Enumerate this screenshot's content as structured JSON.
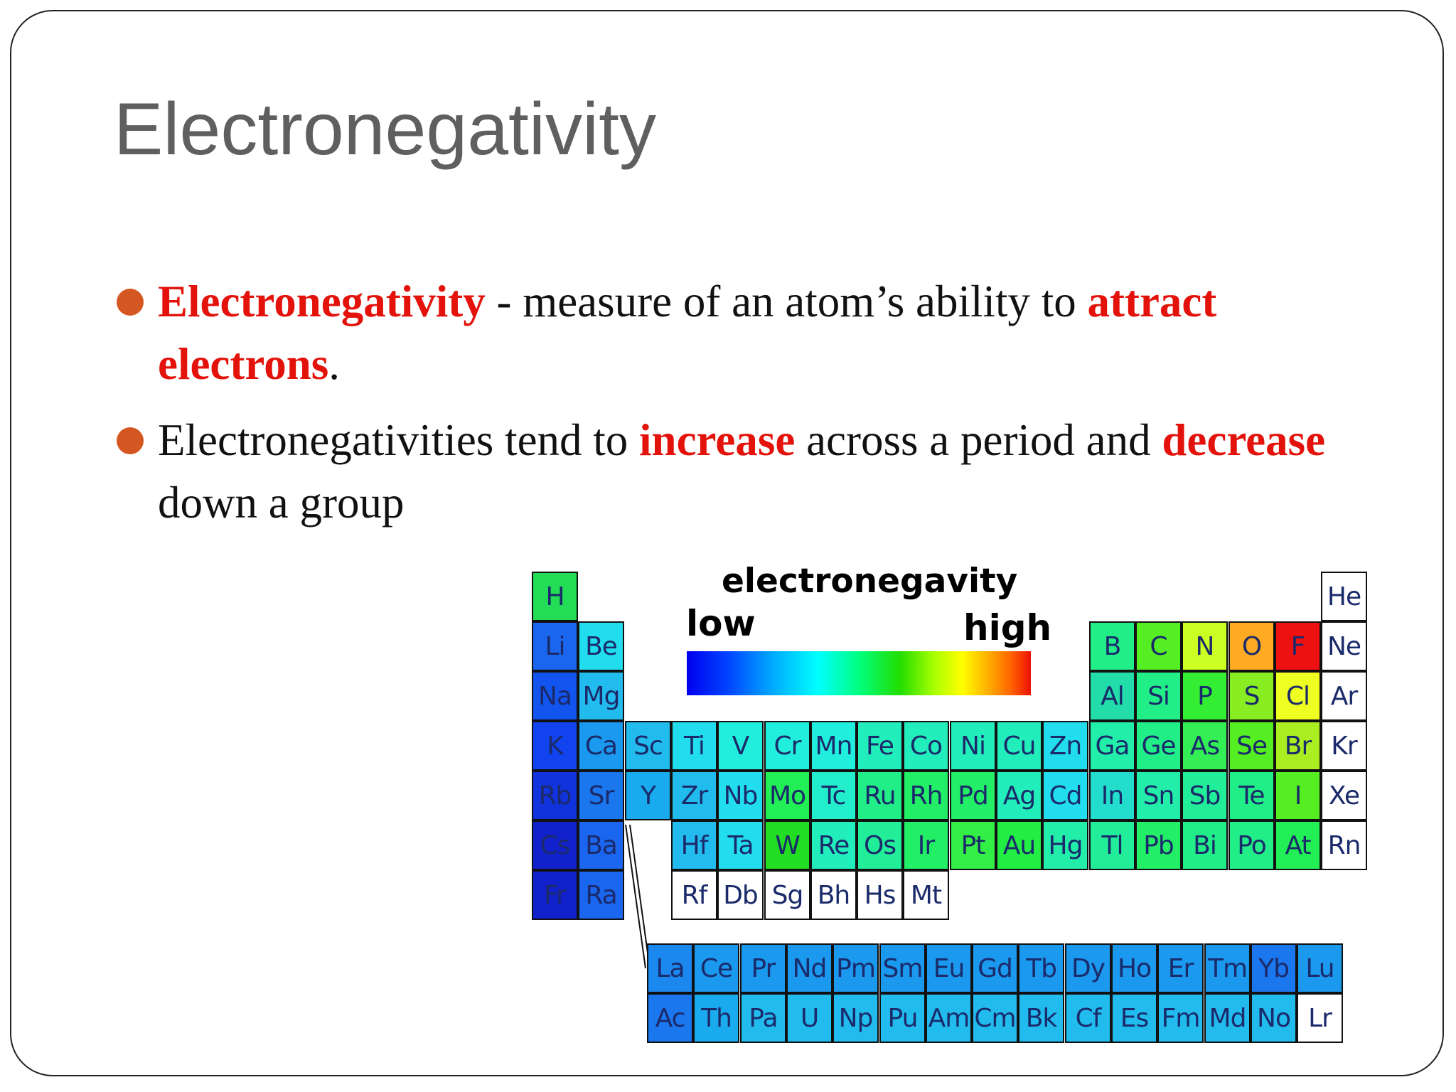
{
  "slide": {
    "title": "Electronegativity",
    "bullets": [
      {
        "term": "Electronegativity",
        "text1": "  - measure of an atom’s ability to ",
        "emph1": "attract electrons",
        "text2": "."
      },
      {
        "text1": "Electronegativities tend to ",
        "emph1": "increase",
        "text2": " across a period and ",
        "emph2": "decrease",
        "text3": " down a group"
      }
    ],
    "colors": {
      "accent_red": "#e3120b",
      "bullet_dot": "#d45722",
      "title_gray": "#5f5f5f"
    }
  },
  "periodic_table": {
    "legend_title": "electronegavity",
    "legend_low": "low",
    "legend_high": "high",
    "main": [
      {
        "s": "H",
        "r": 0,
        "c": 0,
        "color": "#22dd55"
      },
      {
        "s": "He",
        "r": 0,
        "c": 17,
        "color": "#ffffff"
      },
      {
        "s": "Li",
        "r": 1,
        "c": 0,
        "color": "#1a66ee"
      },
      {
        "s": "Be",
        "r": 1,
        "c": 1,
        "color": "#22ddee"
      },
      {
        "s": "B",
        "r": 1,
        "c": 12,
        "color": "#22ee88"
      },
      {
        "s": "C",
        "r": 1,
        "c": 13,
        "color": "#55ee22"
      },
      {
        "s": "N",
        "r": 1,
        "c": 14,
        "color": "#ccff22"
      },
      {
        "s": "O",
        "r": 1,
        "c": 15,
        "color": "#ffaa22"
      },
      {
        "s": "F",
        "r": 1,
        "c": 16,
        "color": "#ee1111"
      },
      {
        "s": "Ne",
        "r": 1,
        "c": 17,
        "color": "#ffffff"
      },
      {
        "s": "Na",
        "r": 2,
        "c": 0,
        "color": "#1155ee"
      },
      {
        "s": "Mg",
        "r": 2,
        "c": 1,
        "color": "#22bbee"
      },
      {
        "s": "Al",
        "r": 2,
        "c": 12,
        "color": "#22ddaa"
      },
      {
        "s": "Si",
        "r": 2,
        "c": 13,
        "color": "#22ee88"
      },
      {
        "s": "P",
        "r": 2,
        "c": 14,
        "color": "#33ee33"
      },
      {
        "s": "S",
        "r": 2,
        "c": 15,
        "color": "#88ee22"
      },
      {
        "s": "Cl",
        "r": 2,
        "c": 16,
        "color": "#eeff22"
      },
      {
        "s": "Ar",
        "r": 2,
        "c": 17,
        "color": "#ffffff"
      },
      {
        "s": "K",
        "r": 3,
        "c": 0,
        "color": "#1144ee"
      },
      {
        "s": "Ca",
        "r": 3,
        "c": 1,
        "color": "#1a99ee"
      },
      {
        "s": "Sc",
        "r": 3,
        "c": 2,
        "color": "#22bbee"
      },
      {
        "s": "Ti",
        "r": 3,
        "c": 3,
        "color": "#22ddee"
      },
      {
        "s": "V",
        "r": 3,
        "c": 4,
        "color": "#22eedd"
      },
      {
        "s": "Cr",
        "r": 3,
        "c": 5,
        "color": "#22eedd"
      },
      {
        "s": "Mn",
        "r": 3,
        "c": 6,
        "color": "#22eedd"
      },
      {
        "s": "Fe",
        "r": 3,
        "c": 7,
        "color": "#22eebb"
      },
      {
        "s": "Co",
        "r": 3,
        "c": 8,
        "color": "#22eebb"
      },
      {
        "s": "Ni",
        "r": 3,
        "c": 9,
        "color": "#22eebb"
      },
      {
        "s": "Cu",
        "r": 3,
        "c": 10,
        "color": "#22eebb"
      },
      {
        "s": "Zn",
        "r": 3,
        "c": 11,
        "color": "#22ddee"
      },
      {
        "s": "Ga",
        "r": 3,
        "c": 12,
        "color": "#22eeaa"
      },
      {
        "s": "Ge",
        "r": 3,
        "c": 13,
        "color": "#22ee88"
      },
      {
        "s": "As",
        "r": 3,
        "c": 14,
        "color": "#33ee55"
      },
      {
        "s": "Se",
        "r": 3,
        "c": 15,
        "color": "#55ee22"
      },
      {
        "s": "Br",
        "r": 3,
        "c": 16,
        "color": "#aaee22"
      },
      {
        "s": "Kr",
        "r": 3,
        "c": 17,
        "color": "#ffffff"
      },
      {
        "s": "Rb",
        "r": 4,
        "c": 0,
        "color": "#1133dd"
      },
      {
        "s": "Sr",
        "r": 4,
        "c": 1,
        "color": "#1a77ee"
      },
      {
        "s": "Y",
        "r": 4,
        "c": 2,
        "color": "#1aaaee"
      },
      {
        "s": "Zr",
        "r": 4,
        "c": 3,
        "color": "#22bbee"
      },
      {
        "s": "Nb",
        "r": 4,
        "c": 4,
        "color": "#22ddee"
      },
      {
        "s": "Mo",
        "r": 4,
        "c": 5,
        "color": "#22ee55"
      },
      {
        "s": "Tc",
        "r": 4,
        "c": 6,
        "color": "#22eecc"
      },
      {
        "s": "Ru",
        "r": 4,
        "c": 7,
        "color": "#22ee88"
      },
      {
        "s": "Rh",
        "r": 4,
        "c": 8,
        "color": "#22ee66"
      },
      {
        "s": "Pd",
        "r": 4,
        "c": 9,
        "color": "#22ee66"
      },
      {
        "s": "Ag",
        "r": 4,
        "c": 10,
        "color": "#22eebb"
      },
      {
        "s": "Cd",
        "r": 4,
        "c": 11,
        "color": "#22ddee"
      },
      {
        "s": "In",
        "r": 4,
        "c": 12,
        "color": "#22ddcc"
      },
      {
        "s": "Sn",
        "r": 4,
        "c": 13,
        "color": "#22eeaa"
      },
      {
        "s": "Sb",
        "r": 4,
        "c": 14,
        "color": "#22ee99"
      },
      {
        "s": "Te",
        "r": 4,
        "c": 15,
        "color": "#22ee88"
      },
      {
        "s": "I",
        "r": 4,
        "c": 16,
        "color": "#55ee22"
      },
      {
        "s": "Xe",
        "r": 4,
        "c": 17,
        "color": "#ffffff"
      },
      {
        "s": "Cs",
        "r": 5,
        "c": 0,
        "color": "#1122cc"
      },
      {
        "s": "Ba",
        "r": 5,
        "c": 1,
        "color": "#1a66ee"
      },
      {
        "s": "Hf",
        "r": 5,
        "c": 3,
        "color": "#22bbee"
      },
      {
        "s": "Ta",
        "r": 5,
        "c": 4,
        "color": "#22ddee"
      },
      {
        "s": "W",
        "r": 5,
        "c": 5,
        "color": "#22dd22"
      },
      {
        "s": "Re",
        "r": 5,
        "c": 6,
        "color": "#22eebb"
      },
      {
        "s": "Os",
        "r": 5,
        "c": 7,
        "color": "#22ee99"
      },
      {
        "s": "Ir",
        "r": 5,
        "c": 8,
        "color": "#22ee66"
      },
      {
        "s": "Pt",
        "r": 5,
        "c": 9,
        "color": "#33ee44"
      },
      {
        "s": "Au",
        "r": 5,
        "c": 10,
        "color": "#22ee44"
      },
      {
        "s": "Hg",
        "r": 5,
        "c": 11,
        "color": "#22eeaa"
      },
      {
        "s": "Tl",
        "r": 5,
        "c": 12,
        "color": "#22ee99"
      },
      {
        "s": "Pb",
        "r": 5,
        "c": 13,
        "color": "#22ee66"
      },
      {
        "s": "Bi",
        "r": 5,
        "c": 14,
        "color": "#22ee88"
      },
      {
        "s": "Po",
        "r": 5,
        "c": 15,
        "color": "#22ee88"
      },
      {
        "s": "At",
        "r": 5,
        "c": 16,
        "color": "#22ee55"
      },
      {
        "s": "Rn",
        "r": 5,
        "c": 17,
        "color": "#ffffff"
      },
      {
        "s": "Fr",
        "r": 6,
        "c": 0,
        "color": "#1122cc"
      },
      {
        "s": "Ra",
        "r": 6,
        "c": 1,
        "color": "#1a66ee"
      },
      {
        "s": "Rf",
        "r": 6,
        "c": 3,
        "color": "#ffffff"
      },
      {
        "s": "Db",
        "r": 6,
        "c": 4,
        "color": "#ffffff"
      },
      {
        "s": "Sg",
        "r": 6,
        "c": 5,
        "color": "#ffffff"
      },
      {
        "s": "Bh",
        "r": 6,
        "c": 6,
        "color": "#ffffff"
      },
      {
        "s": "Hs",
        "r": 6,
        "c": 7,
        "color": "#ffffff"
      },
      {
        "s": "Mt",
        "r": 6,
        "c": 8,
        "color": "#ffffff"
      }
    ],
    "lanthanides": [
      {
        "s": "La",
        "color": "#1a88ee"
      },
      {
        "s": "Ce",
        "color": "#1a99ee"
      },
      {
        "s": "Pr",
        "color": "#1a99ee"
      },
      {
        "s": "Nd",
        "color": "#1a99ee"
      },
      {
        "s": "Pm",
        "color": "#1a99ee"
      },
      {
        "s": "Sm",
        "color": "#1a99ee"
      },
      {
        "s": "Eu",
        "color": "#1a99ee"
      },
      {
        "s": "Gd",
        "color": "#1a99ee"
      },
      {
        "s": "Tb",
        "color": "#1a99ee"
      },
      {
        "s": "Dy",
        "color": "#1a99ee"
      },
      {
        "s": "Ho",
        "color": "#1a99ee"
      },
      {
        "s": "Er",
        "color": "#1a99ee"
      },
      {
        "s": "Tm",
        "color": "#1a99ee"
      },
      {
        "s": "Yb",
        "color": "#1a77ee"
      },
      {
        "s": "Lu",
        "color": "#1a99ee"
      }
    ],
    "actinides": [
      {
        "s": "Ac",
        "color": "#1a77ee"
      },
      {
        "s": "Th",
        "color": "#1aaaee"
      },
      {
        "s": "Pa",
        "color": "#22bbee"
      },
      {
        "s": "U",
        "color": "#22bbee"
      },
      {
        "s": "Np",
        "color": "#22bbee"
      },
      {
        "s": "Pu",
        "color": "#22bbee"
      },
      {
        "s": "Am",
        "color": "#22bbee"
      },
      {
        "s": "Cm",
        "color": "#22bbee"
      },
      {
        "s": "Bk",
        "color": "#22bbee"
      },
      {
        "s": "Cf",
        "color": "#22bbee"
      },
      {
        "s": "Es",
        "color": "#22bbee"
      },
      {
        "s": "Fm",
        "color": "#22bbee"
      },
      {
        "s": "Md",
        "color": "#22bbee"
      },
      {
        "s": "No",
        "color": "#22bbee"
      },
      {
        "s": "Lr",
        "color": "#ffffff"
      }
    ]
  }
}
